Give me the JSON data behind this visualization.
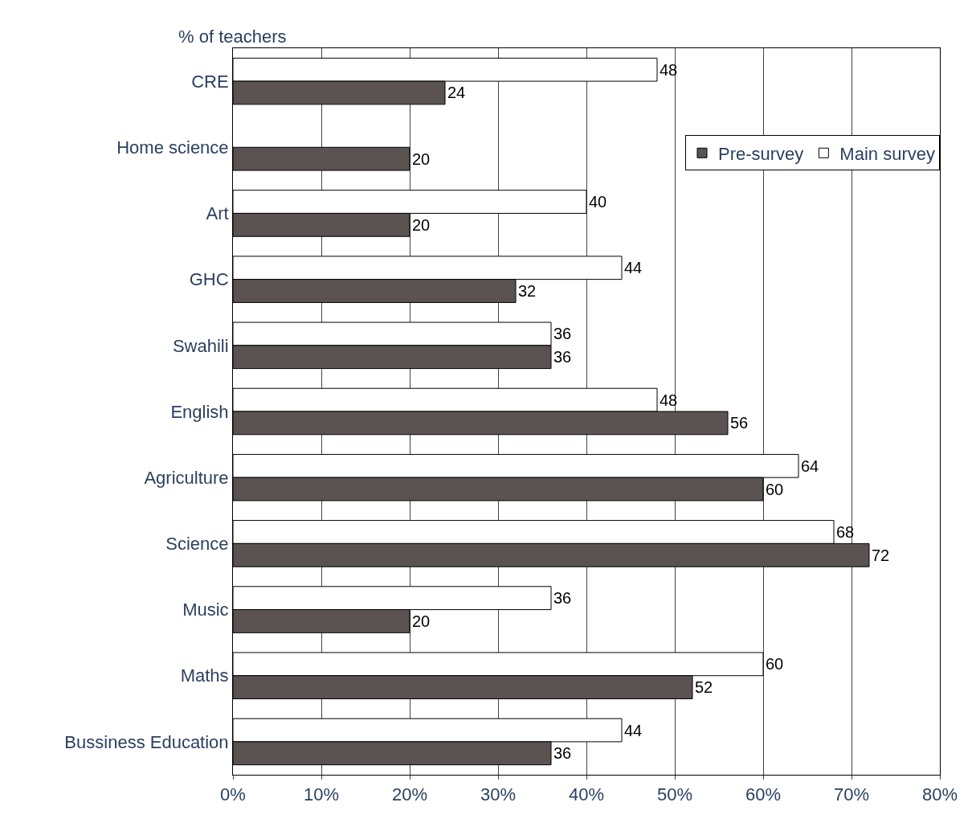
{
  "chart_data": {
    "type": "bar",
    "orientation": "horizontal",
    "ylabel": "% of teachers",
    "categories": [
      "CRE",
      "Home science",
      "Art",
      "GHC",
      "Swahili",
      "English",
      "Agriculture",
      "Science",
      "Music",
      "Maths",
      "Bussiness Education"
    ],
    "series": [
      {
        "name": "Pre-survey",
        "color": "#5a5352",
        "values": [
          24,
          20,
          20,
          32,
          36,
          56,
          60,
          72,
          20,
          52,
          36
        ]
      },
      {
        "name": "Main survey",
        "color": "#ffffff",
        "values": [
          48,
          null,
          40,
          44,
          36,
          48,
          64,
          68,
          36,
          60,
          44
        ]
      }
    ],
    "xlim": [
      0,
      80
    ],
    "xticks": [
      {
        "value": 0,
        "label": "0%"
      },
      {
        "value": 10,
        "label": "10%"
      },
      {
        "value": 20,
        "label": "20%"
      },
      {
        "value": 30,
        "label": "30%"
      },
      {
        "value": 40,
        "label": "40%"
      },
      {
        "value": 50,
        "label": "50%"
      },
      {
        "value": 60,
        "label": "60%"
      },
      {
        "value": 70,
        "label": "70%"
      },
      {
        "value": 80,
        "label": "80%"
      }
    ],
    "data_labels": true,
    "grid": "x",
    "legend": "top right"
  }
}
